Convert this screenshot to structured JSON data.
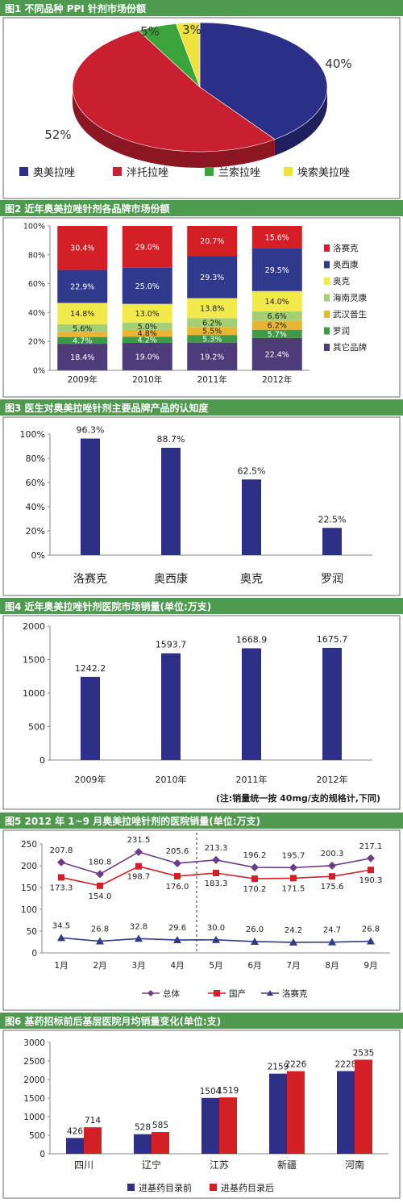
{
  "colors": {
    "header_bg": "#4e9a4f",
    "header_text": "#ffffff",
    "border": "#6a6a6a"
  },
  "charts": [
    {
      "id": "fig1",
      "header": "图1  不同品种 PPI 针剂市场份额",
      "chart_data": {
        "type": "pie",
        "title": "不同品种 PPI 针剂市场份额",
        "slices": [
          {
            "name": "奥美拉唑",
            "value": 40,
            "label": "40%",
            "color": "#2c2f87"
          },
          {
            "name": "泮托拉唑",
            "value": 52,
            "label": "52%",
            "color": "#c8202f"
          },
          {
            "name": "兰索拉唑",
            "value": 5,
            "label": "5%",
            "color": "#3aa33a"
          },
          {
            "name": "埃索美拉唑",
            "value": 3,
            "label": "3%",
            "color": "#ede33a"
          }
        ],
        "legend": {
          "position": "bottom"
        }
      }
    },
    {
      "id": "fig2",
      "header": "图2  近年奥美拉唑针剂各品牌市场份额",
      "chart_data": {
        "type": "bar",
        "stacked": true,
        "title": "近年奥美拉唑针剂各品牌市场份额",
        "categories": [
          "2009年",
          "2010年",
          "2011年",
          "2012年"
        ],
        "yticks": [
          "0%",
          "20%",
          "40%",
          "60%",
          "80%",
          "100%"
        ],
        "ylim": [
          0,
          100
        ],
        "series": [
          {
            "name": "其它品牌",
            "color": "#4e3b7a",
            "values": [
              18.4,
              19.0,
              19.2,
              22.4
            ],
            "labels": [
              "18.4%",
              "19.0%",
              "19.2%",
              "22.4%"
            ]
          },
          {
            "name": "罗润",
            "color": "#3e9a46",
            "values": [
              4.7,
              4.2,
              5.3,
              5.7
            ],
            "labels": [
              "4.7%",
              "4.2%",
              "5.3%",
              "5.7%"
            ]
          },
          {
            "name": "武汉普生",
            "color": "#e9b532",
            "values": [
              3.2,
              4.8,
              5.5,
              6.2
            ],
            "labels": [
              "",
              "4.8%",
              "5.5%",
              "6.2%"
            ]
          },
          {
            "name": "海南灵康",
            "color": "#a4cf73",
            "values": [
              5.6,
              5.0,
              6.2,
              6.6
            ],
            "labels": [
              "5.6%",
              "5.0%",
              "6.2%",
              "6.6%"
            ]
          },
          {
            "name": "奥克",
            "color": "#f2ea4c",
            "values": [
              14.8,
              13.0,
              13.8,
              14.0
            ],
            "labels": [
              "14.8%",
              "13.0%",
              "13.8%",
              "14.0%"
            ]
          },
          {
            "name": "奥西康",
            "color": "#2f3a8c",
            "values": [
              22.9,
              25.0,
              29.3,
              29.5
            ],
            "labels": [
              "22.9%",
              "25.0%",
              "29.3%",
              "29.5%"
            ]
          },
          {
            "name": "洛赛克",
            "color": "#d41f26",
            "values": [
              30.4,
              29.0,
              20.7,
              15.6
            ],
            "labels": [
              "30.4%",
              "29.0%",
              "20.7%",
              "15.6%"
            ]
          }
        ],
        "legend": {
          "position": "right"
        }
      }
    },
    {
      "id": "fig3",
      "header": "图3  医生对奥美拉唑针剂主要品牌产品的认知度",
      "chart_data": {
        "type": "bar",
        "title": "医生对奥美拉唑针剂主要品牌产品的认知度",
        "categories": [
          "洛赛克",
          "奥西康",
          "奥克",
          "罗润"
        ],
        "values": [
          96.3,
          88.7,
          62.5,
          22.5
        ],
        "value_labels": [
          "96.3%",
          "88.7%",
          "62.5%",
          "22.5%"
        ],
        "yticks": [
          "0%",
          "20%",
          "40%",
          "60%",
          "80%",
          "100%"
        ],
        "ylim": [
          0,
          100
        ],
        "bar_color": "#2e2f86"
      }
    },
    {
      "id": "fig4",
      "header": "图4  近年奥美拉唑针剂医院市场销量(单位:万支)",
      "note": "(注:销量统一按 40mg/支的规格计,下同)",
      "chart_data": {
        "type": "bar",
        "title": "近年奥美拉唑针剂医院市场销量(单位:万支)",
        "categories": [
          "2009年",
          "2010年",
          "2011年",
          "2012年"
        ],
        "values": [
          1242.2,
          1593.7,
          1668.9,
          1675.7
        ],
        "value_labels": [
          "1242.2",
          "1593.7",
          "1668.9",
          "1675.7"
        ],
        "yticks": [
          "0",
          "500",
          "1000",
          "1500",
          "2000"
        ],
        "ylim": [
          0,
          2000
        ],
        "bar_color": "#2e2f86"
      }
    },
    {
      "id": "fig5",
      "header": "图5  2012 年 1~9 月奥美拉唑针剂的医院销量(单位:万支)",
      "chart_data": {
        "type": "line",
        "title": "2012 年 1~9 月奥美拉唑针剂的医院销量(单位:万支)",
        "categories": [
          "1月",
          "2月",
          "3月",
          "4月",
          "5月",
          "6月",
          "7月",
          "8月",
          "9月"
        ],
        "yticks": [
          "0",
          "50",
          "100",
          "150",
          "200",
          "250"
        ],
        "ylim": [
          0,
          250
        ],
        "divider_after_index": 3,
        "series": [
          {
            "name": "总体",
            "color": "#6b3c8c",
            "marker": "diamond",
            "values": [
              207.8,
              180.8,
              231.5,
              205.6,
              213.3,
              196.2,
              195.7,
              200.3,
              217.1
            ],
            "labels": [
              "207.8",
              "180.8",
              "231.5",
              "205.6",
              "213.3",
              "196.2",
              "195.7",
              "200.3",
              "217.1"
            ]
          },
          {
            "name": "国产",
            "color": "#d41f26",
            "marker": "square",
            "values": [
              173.3,
              154.0,
              198.7,
              176.0,
              183.3,
              170.2,
              171.5,
              175.6,
              190.3
            ],
            "labels": [
              "173.3",
              "154.0",
              "198.7",
              "176.0",
              "183.3",
              "170.2",
              "171.5",
              "175.6",
              "190.3"
            ]
          },
          {
            "name": "洛赛克",
            "color": "#2f3a8c",
            "marker": "triangle",
            "values": [
              34.5,
              26.8,
              32.8,
              29.6,
              30.0,
              26.0,
              24.2,
              24.7,
              26.8
            ],
            "labels": [
              "34.5",
              "26.8",
              "32.8",
              "29.6",
              "30.0",
              "26.0",
              "24.2",
              "24.7",
              "26.8"
            ]
          }
        ],
        "legend": {
          "position": "bottom"
        }
      }
    },
    {
      "id": "fig6",
      "header": "图6  基药招标前后基层医院月均销量变化(单位:支)",
      "chart_data": {
        "type": "bar",
        "title": "基药招标前后基层医院月均销量变化(单位:支)",
        "categories": [
          "四川",
          "辽宁",
          "江苏",
          "新疆",
          "河南"
        ],
        "yticks": [
          "0",
          "500",
          "1000",
          "1500",
          "2000",
          "2500",
          "3000"
        ],
        "ylim": [
          0,
          3000
        ],
        "series": [
          {
            "name": "进基药目录前",
            "color": "#2e2f86",
            "values": [
              426,
              528,
              1504,
              2159,
              2228
            ],
            "labels": [
              "426",
              "528",
              "1504",
              "2159",
              "2228"
            ]
          },
          {
            "name": "进基药目录后",
            "color": "#d41f26",
            "values": [
              714,
              585,
              1519,
              2226,
              2535
            ],
            "labels": [
              "714",
              "585",
              "1519",
              "2226",
              "2535"
            ]
          }
        ],
        "legend": {
          "position": "bottom"
        }
      }
    }
  ]
}
